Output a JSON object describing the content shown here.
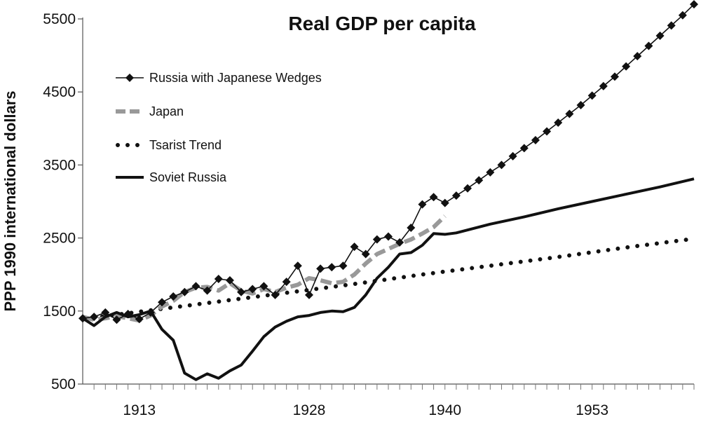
{
  "chart_data": {
    "type": "line",
    "title": "Real GDP per capita",
    "xlabel": "",
    "ylabel": "PPP 1990 international dollars",
    "xlim": [
      1908,
      1962
    ],
    "ylim": [
      500,
      5500
    ],
    "yticks": [
      500,
      1500,
      2500,
      3500,
      4500,
      5500
    ],
    "yticks_labels": [
      "500",
      "1500",
      "2500",
      "3500",
      "4500",
      "5500"
    ],
    "xticks": [
      1913,
      1928,
      1940,
      1953
    ],
    "xticks_labels": [
      "1913",
      "1928",
      "1940",
      "1953"
    ],
    "grid": false,
    "legend_position": "top-left",
    "series": [
      {
        "name": "Russia with Japanese Wedges",
        "style": "solid-diamond",
        "color": "#111111",
        "x": [
          1908,
          1909,
          1910,
          1911,
          1912,
          1913,
          1914,
          1915,
          1916,
          1917,
          1918,
          1919,
          1920,
          1921,
          1922,
          1923,
          1924,
          1925,
          1926,
          1927,
          1928,
          1929,
          1930,
          1931,
          1932,
          1933,
          1934,
          1935,
          1936,
          1937,
          1938,
          1939,
          1940,
          1941,
          1942,
          1943,
          1944,
          1945,
          1946,
          1947,
          1948,
          1949,
          1950,
          1951,
          1952,
          1953,
          1954,
          1955,
          1956,
          1957,
          1958,
          1959,
          1960,
          1961,
          1962
        ],
        "y": [
          1400,
          1420,
          1480,
          1380,
          1460,
          1390,
          1480,
          1620,
          1700,
          1760,
          1840,
          1780,
          1940,
          1920,
          1760,
          1800,
          1840,
          1720,
          1900,
          2120,
          1720,
          2080,
          2100,
          2120,
          2380,
          2280,
          2480,
          2520,
          2440,
          2640,
          2960,
          3060,
          2980,
          3080,
          3180,
          3290,
          3400,
          3500,
          3620,
          3730,
          3840,
          3960,
          4080,
          4200,
          4320,
          4450,
          4580,
          4710,
          4850,
          4990,
          5130,
          5270,
          5410,
          5550,
          5700
        ]
      },
      {
        "name": "Japan",
        "style": "dashed",
        "color": "#999999",
        "x": [
          1908,
          1909,
          1910,
          1911,
          1912,
          1913,
          1914,
          1915,
          1916,
          1917,
          1918,
          1919,
          1920,
          1921,
          1922,
          1923,
          1924,
          1925,
          1926,
          1927,
          1928,
          1929,
          1930,
          1931,
          1932,
          1933,
          1934,
          1935,
          1936,
          1937,
          1938,
          1939,
          1940
        ],
        "y": [
          1420,
          1380,
          1400,
          1430,
          1400,
          1370,
          1440,
          1560,
          1640,
          1760,
          1820,
          1830,
          1780,
          1880,
          1780,
          1740,
          1800,
          1760,
          1820,
          1860,
          1950,
          1920,
          1880,
          1900,
          2000,
          2150,
          2280,
          2350,
          2420,
          2480,
          2560,
          2650,
          2800
        ]
      },
      {
        "name": "Tsarist Trend",
        "style": "dotted",
        "color": "#111111",
        "x": [
          1908,
          1914,
          1920,
          1926,
          1932,
          1938,
          1944,
          1950,
          1956,
          1962
        ],
        "y": [
          1390,
          1510,
          1630,
          1750,
          1870,
          2000,
          2120,
          2240,
          2370,
          2490
        ]
      },
      {
        "name": "Soviet Russia",
        "style": "solid",
        "color": "#111111",
        "x": [
          1908,
          1909,
          1910,
          1911,
          1912,
          1913,
          1914,
          1915,
          1916,
          1917,
          1918,
          1919,
          1920,
          1921,
          1922,
          1923,
          1924,
          1925,
          1926,
          1927,
          1928,
          1929,
          1930,
          1931,
          1932,
          1933,
          1934,
          1935,
          1936,
          1937,
          1938,
          1939,
          1940,
          1941,
          1944,
          1947,
          1950,
          1953,
          1956,
          1959,
          1962
        ],
        "y": [
          1400,
          1300,
          1420,
          1480,
          1420,
          1450,
          1500,
          1250,
          1100,
          650,
          560,
          640,
          580,
          680,
          760,
          950,
          1150,
          1280,
          1360,
          1420,
          1440,
          1480,
          1500,
          1490,
          1550,
          1720,
          1950,
          2100,
          2280,
          2300,
          2400,
          2560,
          2550,
          2570,
          2690,
          2790,
          2900,
          3000,
          3100,
          3200,
          3310
        ]
      }
    ]
  }
}
